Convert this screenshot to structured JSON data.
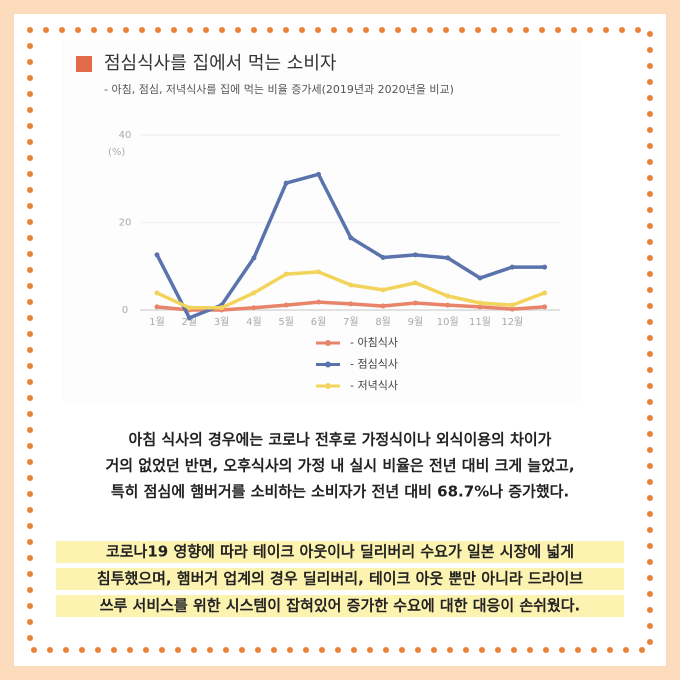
{
  "chart_data": {
    "type": "line",
    "title": "점심식사를 집에서 먹는 소비자",
    "title_marker_color": "#e06a4a",
    "subtitle": "- 아침, 점심, 저녁식사를 집에 먹는 비율 증가세(2019년과 2020년을 비교)",
    "y_unit_label": "(%)",
    "categories": [
      "1월",
      "2월",
      "3월",
      "4월",
      "5월",
      "6월",
      "7월",
      "8월",
      "9월",
      "10월",
      "11월",
      "12월",
      null
    ],
    "series": [
      {
        "name": "- 아침식사",
        "color": "#e8846a",
        "values": [
          0.7,
          0,
          0,
          0.5,
          1.1,
          1.8,
          1.4,
          0.9,
          1.6,
          1.1,
          0.7,
          0.2,
          0.7
        ]
      },
      {
        "name": "- 점심식사",
        "color": "#5a73ad",
        "values": [
          12.6,
          -1.8,
          1.1,
          11.9,
          29,
          31,
          16.5,
          12,
          12.6,
          11.9,
          7.3,
          9.8,
          9.8
        ]
      },
      {
        "name": "- 저녁식사",
        "color": "#f2d45c",
        "values": [
          3.9,
          0.5,
          0.5,
          3.9,
          8.2,
          8.7,
          5.7,
          4.6,
          6.2,
          3.2,
          1.6,
          1.1,
          3.9
        ]
      }
    ],
    "ylim": [
      -3,
      42
    ],
    "yticks": [
      0,
      20,
      40
    ],
    "grid": true
  },
  "text": {
    "paragraph1": [
      "아침 식사의 경우에는 코로나 전후로 가정식이나 외식이용의 차이가",
      "거의 없었던 반면, 오후식사의 가정 내 실시 비율은 전년 대비 크게 늘었고,",
      "특히 점심에 햄버거를 소비하는 소비자가 전년 대비 68.7%나 증가했다."
    ],
    "paragraph2": [
      "코로나19 영향에 따라 테이크 아웃이나 딜리버리 수요가 일본 시장에 넓게",
      "침투했으며, 햄버거 업계의 경우 딜리버리, 테이크 아웃 뿐만 아니라 드라이브",
      "쓰루 서비스를 위한 시스템이 잡혀있어 증가한 수요에 대한 대응이 손쉬웠다."
    ]
  }
}
